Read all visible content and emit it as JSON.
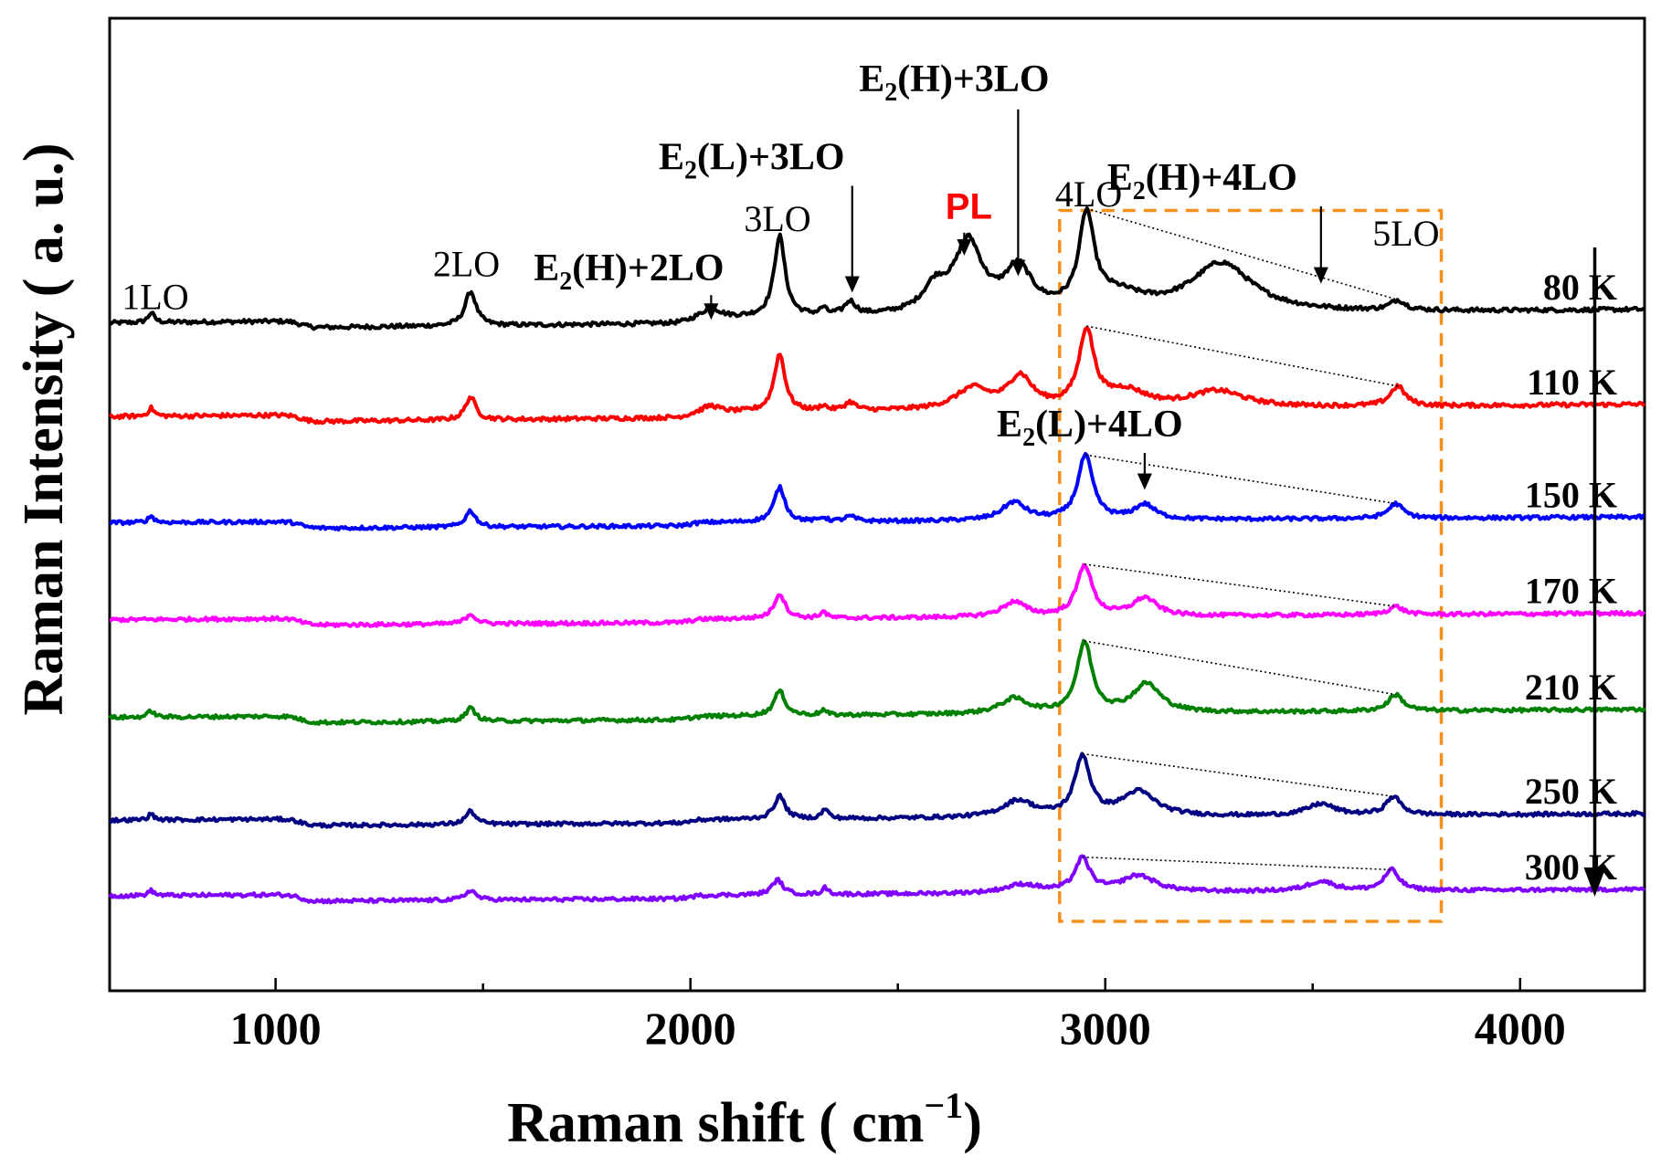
{
  "chart_data": {
    "type": "line",
    "title": "",
    "xlabel": "Raman shift ( cm",
    "xlabel_sup": "−1",
    "xlabel_end": ")",
    "ylabel": "Raman Intensity ( a. u.)",
    "xlim": [
      600,
      4300
    ],
    "ylim": [
      0,
      1
    ],
    "xticks": [
      1000,
      2000,
      3000,
      4000
    ],
    "x_minor_step": 500,
    "yticks": [],
    "grid": false,
    "series": [
      {
        "name": "80 K",
        "color": "#000000",
        "baseline": 0.718,
        "slope": 0.018,
        "noise": 0.0025,
        "steps": [
          {
            "x": 1060,
            "h": -0.008
          },
          {
            "x": 2000,
            "h": 0.006
          }
        ],
        "peaks": [
          [
            700,
            0.012,
            9
          ],
          [
            1470,
            0.042,
            16
          ],
          [
            2050,
            0.012,
            25
          ],
          [
            2215,
            0.098,
            16
          ],
          [
            2320,
            0.008,
            9
          ],
          [
            2385,
            0.016,
            16
          ],
          [
            2590,
            0.03,
            35
          ],
          [
            2670,
            0.085,
            40
          ],
          [
            2790,
            0.052,
            40
          ],
          [
            2955,
            0.11,
            22
          ],
          [
            3030,
            0.02,
            80
          ],
          [
            3280,
            0.06,
            90
          ],
          [
            3705,
            0.012,
            22
          ]
        ]
      },
      {
        "name": "110 K",
        "color": "#ff0000",
        "baseline": 0.604,
        "slope": 0.017,
        "noise": 0.0025,
        "steps": [
          {
            "x": 1060,
            "h": -0.008
          },
          {
            "x": 2000,
            "h": 0.006
          }
        ],
        "peaks": [
          [
            700,
            0.01,
            9
          ],
          [
            1470,
            0.028,
            15
          ],
          [
            2050,
            0.008,
            25
          ],
          [
            2215,
            0.07,
            16
          ],
          [
            2320,
            0.006,
            9
          ],
          [
            2385,
            0.01,
            16
          ],
          [
            2680,
            0.025,
            50
          ],
          [
            2795,
            0.038,
            35
          ],
          [
            2955,
            0.092,
            22
          ],
          [
            3050,
            0.02,
            60
          ],
          [
            3270,
            0.02,
            80
          ],
          [
            3705,
            0.024,
            22
          ]
        ]
      },
      {
        "name": "150 K",
        "color": "#0000ff",
        "baseline": 0.475,
        "slope": 0.011,
        "noise": 0.0022,
        "steps": [
          {
            "x": 1060,
            "h": -0.008
          },
          {
            "x": 2000,
            "h": 0.004
          }
        ],
        "peaks": [
          [
            700,
            0.008,
            9
          ],
          [
            1470,
            0.02,
            15
          ],
          [
            2215,
            0.042,
            16
          ],
          [
            2320,
            0.005,
            9
          ],
          [
            2385,
            0.006,
            16
          ],
          [
            2780,
            0.022,
            35
          ],
          [
            2952,
            0.078,
            22
          ],
          [
            3095,
            0.018,
            30
          ],
          [
            3700,
            0.018,
            22
          ]
        ]
      },
      {
        "name": "170 K",
        "color": "#ff00ff",
        "baseline": 0.357,
        "slope": 0.012,
        "noise": 0.0022,
        "steps": [
          {
            "x": 1060,
            "h": -0.008
          },
          {
            "x": 2000,
            "h": 0.004
          }
        ],
        "peaks": [
          [
            1470,
            0.012,
            15
          ],
          [
            2215,
            0.03,
            16
          ],
          [
            2320,
            0.008,
            9
          ],
          [
            2780,
            0.018,
            35
          ],
          [
            2950,
            0.062,
            22
          ],
          [
            3095,
            0.022,
            35
          ],
          [
            3700,
            0.01,
            22
          ]
        ]
      },
      {
        "name": "210 K",
        "color": "#008000",
        "baseline": 0.238,
        "slope": 0.014,
        "noise": 0.0022,
        "steps": [
          {
            "x": 1060,
            "h": -0.008
          },
          {
            "x": 2000,
            "h": 0.004
          }
        ],
        "peaks": [
          [
            700,
            0.008,
            9
          ],
          [
            1470,
            0.016,
            15
          ],
          [
            2215,
            0.03,
            16
          ],
          [
            2320,
            0.006,
            9
          ],
          [
            2780,
            0.018,
            40
          ],
          [
            2950,
            0.085,
            22
          ],
          [
            3100,
            0.035,
            40
          ],
          [
            3700,
            0.02,
            22
          ]
        ]
      },
      {
        "name": "250 K",
        "color": "#000080",
        "baseline": 0.113,
        "slope": 0.012,
        "noise": 0.0022,
        "steps": [
          {
            "x": 1060,
            "h": -0.008
          },
          {
            "x": 2000,
            "h": 0.004
          }
        ],
        "peaks": [
          [
            700,
            0.007,
            9
          ],
          [
            1470,
            0.016,
            15
          ],
          [
            2215,
            0.028,
            16
          ],
          [
            2325,
            0.012,
            9
          ],
          [
            2790,
            0.02,
            45
          ],
          [
            2945,
            0.072,
            22
          ],
          [
            3080,
            0.03,
            50
          ],
          [
            3520,
            0.014,
            40
          ],
          [
            3695,
            0.022,
            22
          ]
        ]
      },
      {
        "name": "300 K",
        "color": "#8000ff",
        "baseline": 0.021,
        "slope": 0.012,
        "noise": 0.0022,
        "steps": [
          {
            "x": 1060,
            "h": -0.008
          },
          {
            "x": 2000,
            "h": 0.004
          }
        ],
        "peaks": [
          [
            700,
            0.006,
            9
          ],
          [
            1470,
            0.012,
            15
          ],
          [
            2210,
            0.018,
            16
          ],
          [
            2325,
            0.008,
            9
          ],
          [
            2800,
            0.01,
            50
          ],
          [
            2945,
            0.04,
            22
          ],
          [
            3080,
            0.02,
            50
          ],
          [
            3520,
            0.012,
            40
          ],
          [
            3690,
            0.025,
            22
          ]
        ]
      }
    ],
    "tie_lines": [
      {
        "series": "80 K",
        "x1": 2955,
        "x2": 3705
      },
      {
        "series": "110 K",
        "x1": 2955,
        "x2": 3705
      },
      {
        "series": "150 K",
        "x1": 2952,
        "x2": 3700
      },
      {
        "series": "170 K",
        "x1": 2950,
        "x2": 3700
      },
      {
        "series": "210 K",
        "x1": 2950,
        "x2": 3700
      },
      {
        "series": "250 K",
        "x1": 2945,
        "x2": 3695
      },
      {
        "series": "300 K",
        "x1": 2945,
        "x2": 3690
      }
    ],
    "highlight_box": {
      "x1": 2890,
      "x2": 3810,
      "y1": -0.01,
      "y2": 0.855,
      "color": "#f5901e"
    },
    "temperature_arrow": {
      "x": 4180,
      "y1": 0.81,
      "y2": 0.02
    },
    "annotations": [
      {
        "text": "1LO",
        "x": 710,
        "y": 0.735,
        "style": "plain"
      },
      {
        "text": "2LO",
        "x": 1460,
        "y": 0.775,
        "style": "plain"
      },
      {
        "text": "3LO",
        "x": 2210,
        "y": 0.83,
        "style": "plain"
      },
      {
        "text": "4LO",
        "x": 2960,
        "y": 0.86,
        "style": "plain"
      },
      {
        "text": "5LO",
        "x": 3725,
        "y": 0.812,
        "style": "plain"
      }
    ],
    "arrow_annotations": [
      {
        "label": "E",
        "sub": "2",
        "rest": "(H)+2LO",
        "x": 2050,
        "text_y": 0.77,
        "tip_y": 0.722,
        "tail_y": 0.752,
        "text_dx": -90
      },
      {
        "label": "E",
        "sub": "2",
        "rest": "(L)+3LO",
        "x": 2390,
        "text_y": 0.905,
        "tip_y": 0.755,
        "tail_y": 0.885,
        "text_dx": -110
      },
      {
        "label": "E",
        "sub": "2",
        "rest": "(H)+3LO",
        "x": 2790,
        "text_y": 1.0,
        "tip_y": 0.775,
        "tail_y": 0.978,
        "text_dx": -70
      },
      {
        "label": "E",
        "sub": "2",
        "rest": "(H)+4LO",
        "x": 3520,
        "text_y": 0.88,
        "tip_y": 0.766,
        "tail_y": 0.86,
        "text_dx": -130
      },
      {
        "label": "E",
        "sub": "2",
        "rest": "(L)+4LO",
        "x": 3095,
        "text_y": 0.58,
        "tip_y": 0.515,
        "tail_y": 0.56,
        "text_dx": -60
      }
    ],
    "pl_annotation": {
      "text": "PL",
      "color": "#ff0000",
      "x": 2660,
      "text_y": 0.845,
      "tip_y": 0.8,
      "tail_y": 0.828
    }
  }
}
